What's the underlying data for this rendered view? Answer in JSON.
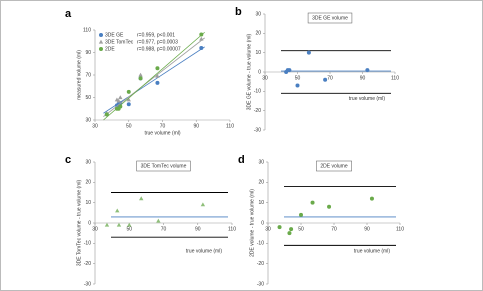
{
  "chart_data": [
    {
      "type": "scatter",
      "label": "a",
      "xlabel": "true volume (ml)",
      "ylabel": "measured volume (ml)",
      "xlim": [
        30,
        110
      ],
      "ylim": [
        30,
        110
      ],
      "xticks": [
        30,
        50,
        70,
        90,
        110
      ],
      "yticks": [
        30,
        50,
        70,
        90,
        110
      ],
      "series": [
        {
          "name": "3DE GE",
          "stat": "r=0.959, p<0.001",
          "color": "#4a7fc1",
          "marker": "circle",
          "x": [
            37,
            43,
            44,
            45,
            50,
            57,
            67,
            93
          ],
          "values": [
            35,
            43,
            44,
            45,
            44,
            67,
            63,
            94
          ],
          "trend_x": [
            35,
            95
          ],
          "trend_values": [
            36,
            95
          ]
        },
        {
          "name": "3DE TomTec",
          "stat": "r=0.977, p=0.0003",
          "color": "#a0a0a0",
          "marker": "triangle",
          "x": [
            37,
            43,
            44,
            45,
            50,
            57,
            67,
            93
          ],
          "values": [
            36,
            48,
            47,
            50,
            48,
            70,
            69,
            102
          ],
          "trend_x": [
            35,
            95
          ],
          "trend_values": [
            33,
            103
          ]
        },
        {
          "name": "2DE",
          "stat": "r=0.988, p=0.00007",
          "color": "#6aaa4a",
          "marker": "circle",
          "x": [
            37,
            43,
            44,
            45,
            50,
            57,
            67,
            93
          ],
          "values": [
            35,
            40,
            40,
            42,
            55,
            67,
            76,
            106
          ],
          "trend_x": [
            35,
            95
          ],
          "trend_values": [
            30,
            108
          ]
        }
      ]
    },
    {
      "type": "scatter",
      "label": "b",
      "title": "3DE GE volume",
      "xlabel": "true volume (ml)",
      "ylabel": "3DE GE volume - true volume (ml)",
      "xlim": [
        30,
        110
      ],
      "ylim": [
        -30,
        30
      ],
      "xticks": [
        30,
        50,
        70,
        90,
        110
      ],
      "yticks": [
        -30,
        -20,
        -10,
        0,
        10,
        20,
        30
      ],
      "x_axis_at": 0,
      "ref_lines": [
        {
          "value": 11,
          "color": "#000000"
        },
        {
          "value": 0.5,
          "color": "#4a7fc1"
        },
        {
          "value": -11,
          "color": "#000000"
        }
      ],
      "series": [
        {
          "color": "#4a7fc1",
          "marker": "circle",
          "x": [
            43,
            44,
            45,
            50,
            57,
            67,
            93
          ],
          "values": [
            0,
            1,
            1,
            -7,
            10,
            -4,
            1
          ]
        }
      ]
    },
    {
      "type": "scatter",
      "label": "c",
      "title": "3DE TomTec volume",
      "xlabel": "true volume (ml)",
      "ylabel": "3DE TomTec volume - true volume (ml)",
      "xlim": [
        30,
        110
      ],
      "ylim": [
        -30,
        30
      ],
      "xticks": [
        30,
        50,
        70,
        90,
        110
      ],
      "yticks": [
        -30,
        -20,
        -10,
        0,
        10,
        20,
        30
      ],
      "x_axis_at": 0,
      "ref_lines": [
        {
          "value": 15,
          "color": "#000000"
        },
        {
          "value": 3,
          "color": "#4a7fc1"
        },
        {
          "value": -7,
          "color": "#000000"
        }
      ],
      "series": [
        {
          "color": "#8fbf7a",
          "marker": "triangle",
          "x": [
            37,
            43,
            44,
            50,
            57,
            67,
            93
          ],
          "values": [
            -1,
            6,
            -1,
            -1,
            12,
            1,
            9
          ]
        }
      ]
    },
    {
      "type": "scatter",
      "label": "d",
      "title": "2DE volume",
      "xlabel": "true volume (ml)",
      "ylabel": "2DE volume - true volume (ml)",
      "xlim": [
        30,
        110
      ],
      "ylim": [
        -30,
        30
      ],
      "xticks": [
        30,
        50,
        70,
        90,
        110
      ],
      "yticks": [
        -30,
        -20,
        -10,
        0,
        10,
        20,
        30
      ],
      "x_axis_at": 0,
      "ref_lines": [
        {
          "value": 18,
          "color": "#000000"
        },
        {
          "value": 3,
          "color": "#4a7fc1"
        },
        {
          "value": -11,
          "color": "#000000"
        }
      ],
      "series": [
        {
          "color": "#6aaa4a",
          "marker": "circle",
          "x": [
            37,
            43,
            44,
            50,
            57,
            67,
            93
          ],
          "values": [
            -2,
            -5,
            -3,
            4,
            10,
            8,
            12
          ]
        }
      ]
    }
  ]
}
